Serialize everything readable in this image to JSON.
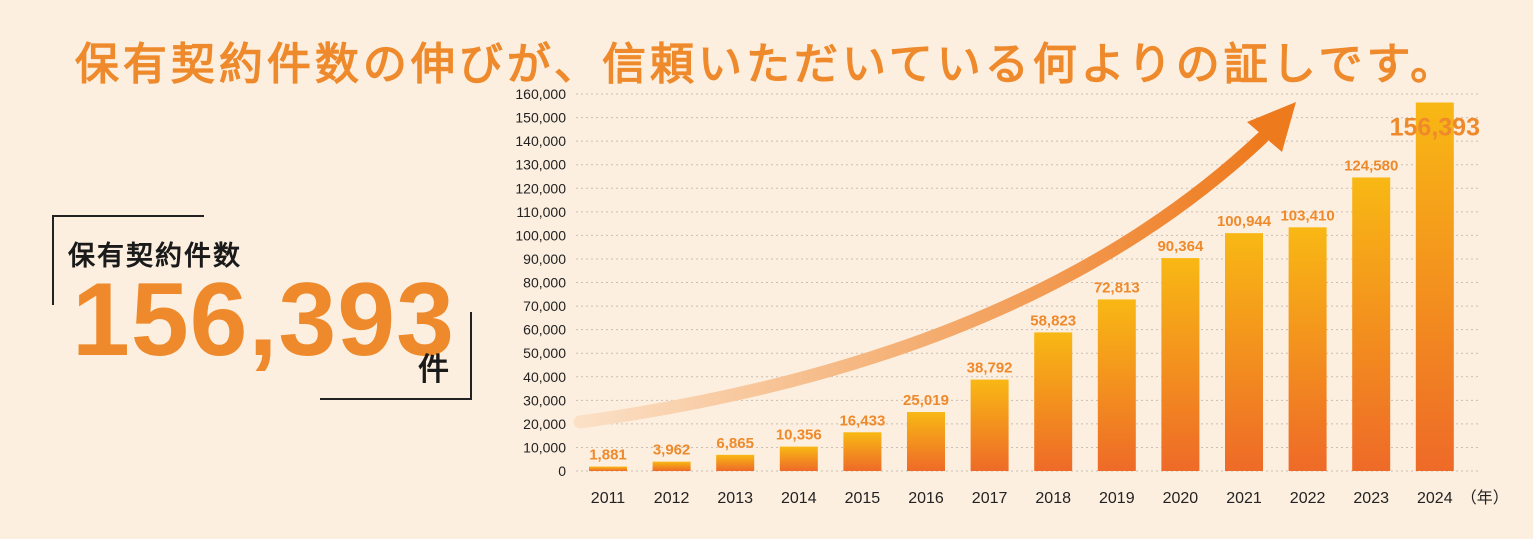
{
  "headline": "保有契約件数の伸びが、信頼いただいている何よりの証しです。",
  "kpi": {
    "label": "保有契約件数",
    "value": "156,393",
    "unit": "件"
  },
  "colors": {
    "accent": "#ee8a2c",
    "bar_top": "#f8b814",
    "bar_bottom": "#ee6a28",
    "background": "#fdefe0"
  },
  "chart_data": {
    "type": "bar",
    "categories": [
      "2011",
      "2012",
      "2013",
      "2014",
      "2015",
      "2016",
      "2017",
      "2018",
      "2019",
      "2020",
      "2021",
      "2022",
      "2023",
      "2024"
    ],
    "values": [
      1881,
      3962,
      6865,
      10356,
      16433,
      25019,
      38792,
      58823,
      72813,
      90364,
      100944,
      103410,
      124580,
      156393
    ],
    "value_labels": [
      "1,881",
      "3,962",
      "6,865",
      "10,356",
      "16,433",
      "25,019",
      "38,792",
      "58,823",
      "72,813",
      "90,364",
      "100,944",
      "103,410",
      "124,580",
      "156,393"
    ],
    "y_ticks": [
      "0",
      "10,000",
      "20,000",
      "30,000",
      "40,000",
      "50,000",
      "60,000",
      "70,000",
      "80,000",
      "90,000",
      "100,000",
      "110,000",
      "120,000",
      "130,000",
      "140,000",
      "150,000",
      "160,000"
    ],
    "ylim": [
      0,
      160000
    ],
    "x_unit": "（年）",
    "grid": true,
    "trend_arrow": true
  }
}
